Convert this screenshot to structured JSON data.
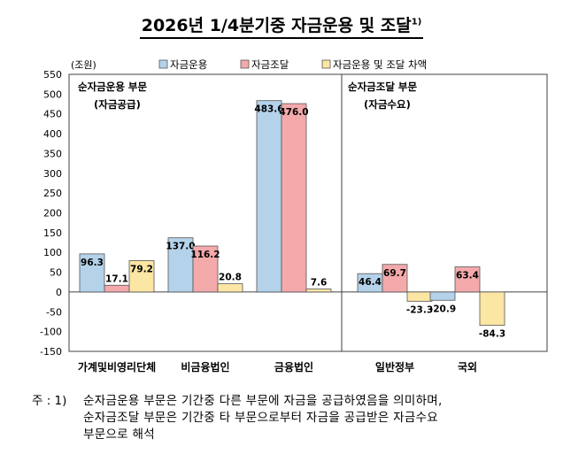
{
  "title": "2026년 1/4분기중 자금운용 및 조달",
  "title_note": "1)",
  "chart_data": {
    "type": "bar",
    "unit_label": "(조원)",
    "ylim": [
      -150,
      550
    ],
    "yticks": [
      550,
      500,
      450,
      400,
      350,
      300,
      250,
      200,
      150,
      100,
      50,
      0,
      -50,
      -100,
      -150
    ],
    "categories": [
      "가계및비영리단체",
      "비금융법인",
      "금융법인",
      "일반정부",
      "국외"
    ],
    "series": [
      {
        "name": "자금운용",
        "color": "#b4d2ea",
        "values": [
          96.3,
          137.0,
          483.6,
          46.4,
          -20.9
        ]
      },
      {
        "name": "자금조달",
        "color": "#f4a9ab",
        "values": [
          17.1,
          116.2,
          476.0,
          69.7,
          63.4
        ]
      },
      {
        "name": "자금운용 및 조달 차액",
        "color": "#fbe6a4",
        "values": [
          79.2,
          20.8,
          7.6,
          -23.3,
          -84.3
        ]
      }
    ],
    "value_labels": [
      [
        "96.3",
        "17.1",
        "79.2"
      ],
      [
        "137.0",
        "116.2",
        "20.8"
      ],
      [
        "483.6",
        "476.0",
        "7.6"
      ],
      [
        "46.4",
        "69.7",
        "-23.3"
      ],
      [
        "-20.9",
        "63.4",
        "-84.3"
      ]
    ],
    "panels": [
      {
        "title": "순자금운용 부문",
        "subtitle": "(자금공급)"
      },
      {
        "title": "순자금조달 부문",
        "subtitle": "(자금수요)"
      }
    ],
    "legend_placement": "top",
    "grid": false
  },
  "footnote": {
    "lead": "주 : 1)",
    "lines": [
      "순자금운용 부문은 기간중 다른 부문에 자금을 공급하였음을 의미하며,",
      "순자금조달 부문은 기간중 타 부문으로부터 자금을 공급받은 자금수요",
      "부문으로 해석"
    ]
  }
}
